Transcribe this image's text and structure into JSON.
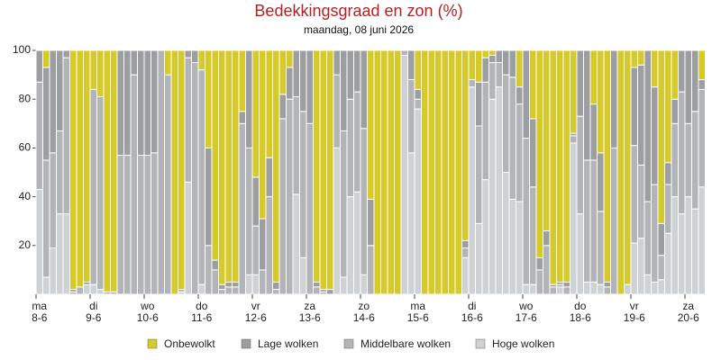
{
  "chart_data": {
    "type": "stacked_bar",
    "title": "Bedekkingsgraad en zon (%)",
    "subtitle": "maandag, 08 juni 2026",
    "ylim": [
      0,
      100
    ],
    "yticks": [
      20,
      40,
      60,
      80,
      100
    ],
    "grid": false,
    "legend": "bottom",
    "categories": [
      [
        "ma",
        "8-6"
      ],
      null,
      null,
      null,
      null,
      null,
      null,
      null,
      [
        "di",
        "9-6"
      ],
      null,
      null,
      null,
      null,
      null,
      null,
      null,
      [
        "wo",
        "10-6"
      ],
      null,
      null,
      null,
      null,
      null,
      null,
      null,
      [
        "do",
        "11-6"
      ],
      null,
      null,
      null,
      null,
      null,
      null,
      null,
      [
        "vr",
        "12-6"
      ],
      null,
      null,
      null,
      null,
      null,
      null,
      null,
      [
        "za",
        "13-6"
      ],
      null,
      null,
      null,
      null,
      null,
      null,
      null,
      [
        "zo",
        "14-6"
      ],
      null,
      null,
      null,
      null,
      null,
      null,
      null,
      [
        "ma",
        "15-6"
      ],
      null,
      null,
      null,
      null,
      null,
      null,
      null,
      [
        "di",
        "16-6"
      ],
      null,
      null,
      null,
      null,
      null,
      null,
      null,
      [
        "wo",
        "17-6"
      ],
      null,
      null,
      null,
      null,
      null,
      null,
      null,
      [
        "do",
        "18-6"
      ],
      null,
      null,
      null,
      null,
      null,
      null,
      null,
      [
        "vr",
        "19-6"
      ],
      null,
      null,
      null,
      null,
      null,
      null,
      null,
      [
        "za",
        "20-6"
      ],
      null,
      null
    ],
    "series": [
      {
        "name": "Onbewolkt",
        "color": "#d6ca2a",
        "values": [
          0,
          7,
          0,
          0,
          0,
          98,
          97,
          95,
          16,
          19,
          99,
          99,
          0,
          0,
          0,
          0,
          0,
          0,
          0,
          10,
          100,
          98,
          0,
          0,
          8,
          40,
          86,
          96,
          95,
          95,
          25,
          0,
          52,
          69,
          44,
          95,
          18,
          7,
          0,
          0,
          0,
          95,
          98,
          98,
          0,
          0,
          0,
          0,
          0,
          61,
          100,
          100,
          100,
          100,
          0,
          0,
          16,
          100,
          100,
          100,
          100,
          100,
          100,
          78,
          12,
          13,
          3,
          2,
          0,
          0,
          0,
          15,
          0,
          28,
          85,
          74,
          96,
          95,
          95,
          34,
          0,
          0,
          22,
          42,
          95,
          0,
          100,
          96,
          7,
          6,
          0,
          15,
          71,
          46,
          20,
          0,
          0,
          0,
          12
        ]
      },
      {
        "name": "Lage wolken",
        "color": "#9c9ea2",
        "values": [
          13,
          38,
          42,
          33,
          3,
          1,
          0,
          1,
          0,
          0,
          0,
          0,
          43,
          43,
          10,
          43,
          43,
          42,
          0,
          0,
          0,
          0,
          3,
          5,
          0,
          40,
          4,
          2,
          2,
          2,
          5,
          40,
          20,
          21,
          16,
          3,
          10,
          13,
          19,
          25,
          30,
          2,
          1,
          2,
          10,
          33,
          20,
          17,
          32,
          19,
          0,
          0,
          0,
          0,
          0,
          12,
          4,
          0,
          0,
          0,
          0,
          0,
          0,
          3,
          0,
          18,
          10,
          3,
          5,
          10,
          11,
          7,
          36,
          28,
          5,
          6,
          1,
          1,
          2,
          1,
          27,
          45,
          23,
          24,
          2,
          40,
          0,
          0,
          32,
          41,
          62,
          40,
          13,
          9,
          10,
          17,
          30,
          25,
          4
        ]
      },
      {
        "name": "Middelbare wolken",
        "color": "#b2b4b7",
        "values": [
          44,
          48,
          39,
          34,
          64,
          1,
          3,
          0,
          80,
          79,
          1,
          1,
          57,
          57,
          90,
          57,
          57,
          58,
          100,
          90,
          0,
          1,
          51,
          95,
          88,
          20,
          10,
          2,
          3,
          3,
          70,
          52,
          20,
          10,
          40,
          2,
          72,
          80,
          40,
          60,
          70,
          3,
          1,
          0,
          30,
          60,
          40,
          41,
          60,
          20,
          0,
          0,
          0,
          0,
          2,
          30,
          4,
          0,
          0,
          0,
          0,
          0,
          0,
          4,
          3,
          40,
          40,
          15,
          10,
          40,
          50,
          40,
          60,
          40,
          10,
          20,
          3,
          1,
          3,
          3,
          40,
          50,
          50,
          30,
          3,
          60,
          0,
          0,
          40,
          30,
          30,
          40,
          10,
          20,
          30,
          50,
          30,
          40,
          40
        ]
      },
      {
        "name": "Hoge wolken",
        "color": "#ced2d5",
        "values": [
          43,
          7,
          19,
          33,
          33,
          0,
          0,
          4,
          4,
          2,
          0,
          0,
          0,
          0,
          0,
          0,
          0,
          0,
          0,
          0,
          0,
          1,
          46,
          0,
          4,
          0,
          0,
          0,
          0,
          0,
          0,
          8,
          8,
          0,
          0,
          0,
          0,
          0,
          41,
          15,
          0,
          0,
          0,
          0,
          60,
          7,
          40,
          42,
          8,
          0,
          0,
          0,
          0,
          0,
          98,
          58,
          76,
          0,
          0,
          0,
          0,
          0,
          0,
          15,
          85,
          29,
          47,
          80,
          85,
          50,
          39,
          38,
          4,
          4,
          0,
          0,
          0,
          3,
          0,
          62,
          33,
          5,
          5,
          4,
          0,
          0,
          0,
          4,
          21,
          23,
          8,
          5,
          6,
          25,
          40,
          33,
          40,
          35,
          44
        ]
      }
    ]
  }
}
